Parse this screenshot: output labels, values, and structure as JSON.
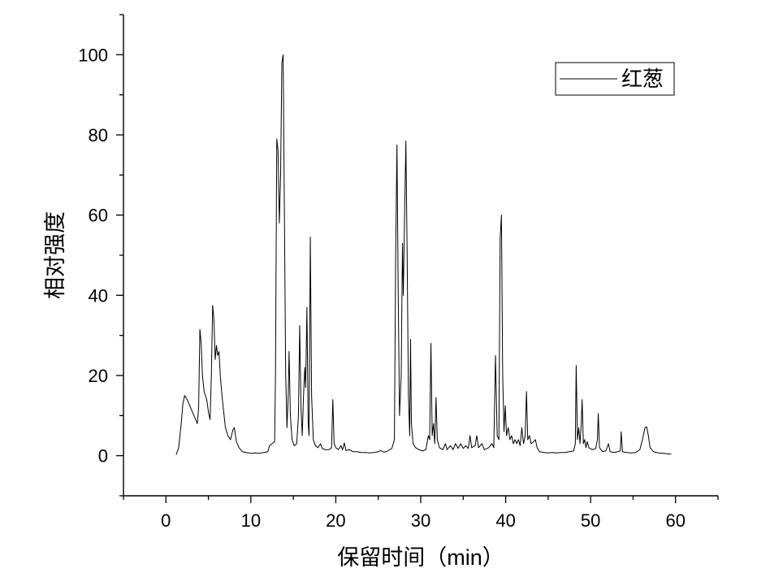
{
  "chart_data": {
    "type": "line",
    "xlabel": "保留时间（min）",
    "ylabel": "相对强度",
    "xlim": [
      -5,
      65
    ],
    "ylim": [
      -10,
      110
    ],
    "xticks": [
      0,
      10,
      20,
      30,
      40,
      50,
      60
    ],
    "yticks": [
      0,
      20,
      40,
      60,
      80,
      100
    ],
    "grid": false,
    "legend": "top-right",
    "series": [
      {
        "name": "红葱",
        "color": "#000000",
        "points": [
          [
            1.2,
            0.2
          ],
          [
            1.5,
            2
          ],
          [
            1.8,
            8
          ],
          [
            2.0,
            13
          ],
          [
            2.2,
            15
          ],
          [
            2.5,
            14
          ],
          [
            2.8,
            12.5
          ],
          [
            3.1,
            11
          ],
          [
            3.4,
            9.5
          ],
          [
            3.7,
            8
          ],
          [
            3.85,
            12
          ],
          [
            4.0,
            31.5
          ],
          [
            4.15,
            28
          ],
          [
            4.3,
            20
          ],
          [
            4.5,
            16
          ],
          [
            4.8,
            14
          ],
          [
            5.0,
            11
          ],
          [
            5.2,
            9
          ],
          [
            5.35,
            20
          ],
          [
            5.5,
            37.5
          ],
          [
            5.65,
            34
          ],
          [
            5.8,
            24
          ],
          [
            5.95,
            27.5
          ],
          [
            6.1,
            25
          ],
          [
            6.25,
            26
          ],
          [
            6.4,
            20
          ],
          [
            6.6,
            15
          ],
          [
            6.8,
            11
          ],
          [
            7.0,
            7
          ],
          [
            7.3,
            5
          ],
          [
            7.6,
            4
          ],
          [
            7.9,
            6.5
          ],
          [
            8.05,
            7
          ],
          [
            8.3,
            3.5
          ],
          [
            8.6,
            2
          ],
          [
            9.0,
            1
          ],
          [
            9.5,
            0.8
          ],
          [
            10,
            0.6
          ],
          [
            10.5,
            0.7
          ],
          [
            11,
            0.6
          ],
          [
            11.5,
            0.8
          ],
          [
            12.0,
            1
          ],
          [
            12.2,
            2.5
          ],
          [
            12.5,
            3
          ],
          [
            12.8,
            3.5
          ],
          [
            12.9,
            20
          ],
          [
            13.05,
            79
          ],
          [
            13.2,
            76
          ],
          [
            13.35,
            58
          ],
          [
            13.5,
            70
          ],
          [
            13.65,
            98
          ],
          [
            13.8,
            100
          ],
          [
            13.95,
            60
          ],
          [
            14.1,
            20
          ],
          [
            14.25,
            7
          ],
          [
            14.4,
            15
          ],
          [
            14.5,
            26
          ],
          [
            14.65,
            10
          ],
          [
            14.85,
            4
          ],
          [
            15.1,
            2.5
          ],
          [
            15.4,
            3
          ],
          [
            15.6,
            10
          ],
          [
            15.75,
            32.5
          ],
          [
            15.9,
            12
          ],
          [
            16.05,
            5
          ],
          [
            16.2,
            15
          ],
          [
            16.35,
            22
          ],
          [
            16.45,
            17
          ],
          [
            16.6,
            37
          ],
          [
            16.75,
            8
          ],
          [
            16.85,
            5
          ],
          [
            17.0,
            54.5
          ],
          [
            17.15,
            15
          ],
          [
            17.35,
            4
          ],
          [
            17.6,
            2.5
          ],
          [
            17.9,
            2
          ],
          [
            18.2,
            3
          ],
          [
            18.4,
            1.8
          ],
          [
            18.8,
            1.5
          ],
          [
            19.2,
            1.5
          ],
          [
            19.5,
            2
          ],
          [
            19.65,
            14
          ],
          [
            19.8,
            3
          ],
          [
            20.0,
            2
          ],
          [
            20.3,
            1.5
          ],
          [
            20.6,
            2.5
          ],
          [
            20.8,
            1.5
          ],
          [
            21.0,
            3.2
          ],
          [
            21.2,
            1.3
          ],
          [
            21.6,
            1.5
          ],
          [
            22,
            1
          ],
          [
            22.5,
            1
          ],
          [
            23,
            0.8
          ],
          [
            23.5,
            0.8
          ],
          [
            24,
            0.7
          ],
          [
            24.5,
            0.8
          ],
          [
            25,
            1
          ],
          [
            25.3,
            1.3
          ],
          [
            25.6,
            0.9
          ],
          [
            26,
            1
          ],
          [
            26.3,
            1.5
          ],
          [
            26.6,
            1.8
          ],
          [
            26.9,
            4
          ],
          [
            27.05,
            50
          ],
          [
            27.2,
            77.5
          ],
          [
            27.35,
            40
          ],
          [
            27.5,
            10
          ],
          [
            27.7,
            20
          ],
          [
            27.85,
            53
          ],
          [
            27.95,
            40
          ],
          [
            28.1,
            60
          ],
          [
            28.25,
            78.5
          ],
          [
            28.4,
            50
          ],
          [
            28.55,
            15
          ],
          [
            28.7,
            5
          ],
          [
            28.8,
            29
          ],
          [
            28.9,
            8
          ],
          [
            29.1,
            3
          ],
          [
            29.4,
            2
          ],
          [
            29.8,
            1.5
          ],
          [
            30.2,
            1.2
          ],
          [
            30.6,
            1.5
          ],
          [
            30.9,
            5
          ],
          [
            31.05,
            4
          ],
          [
            31.2,
            28
          ],
          [
            31.35,
            5
          ],
          [
            31.5,
            8
          ],
          [
            31.65,
            3
          ],
          [
            31.8,
            14.5
          ],
          [
            31.95,
            4
          ],
          [
            32.2,
            2
          ],
          [
            32.6,
            1.5
          ],
          [
            32.9,
            3
          ],
          [
            33.1,
            1.5
          ],
          [
            33.5,
            2.5
          ],
          [
            33.8,
            1.5
          ],
          [
            34.1,
            3
          ],
          [
            34.4,
            1.8
          ],
          [
            34.7,
            3
          ],
          [
            35,
            1.8
          ],
          [
            35.3,
            2.5
          ],
          [
            35.6,
            1.8
          ],
          [
            35.8,
            5
          ],
          [
            36.0,
            2
          ],
          [
            36.4,
            2.5
          ],
          [
            36.6,
            5
          ],
          [
            36.8,
            2
          ],
          [
            37.2,
            3
          ],
          [
            37.5,
            1.5
          ],
          [
            38,
            2
          ],
          [
            38.4,
            3
          ],
          [
            38.6,
            2
          ],
          [
            38.8,
            25
          ],
          [
            39.0,
            5
          ],
          [
            39.2,
            4
          ],
          [
            39.35,
            54
          ],
          [
            39.5,
            60
          ],
          [
            39.65,
            20
          ],
          [
            39.8,
            6
          ],
          [
            39.95,
            12.5
          ],
          [
            40.1,
            5
          ],
          [
            40.3,
            7
          ],
          [
            40.5,
            4
          ],
          [
            40.7,
            5
          ],
          [
            40.9,
            3
          ],
          [
            41.1,
            4
          ],
          [
            41.3,
            3
          ],
          [
            41.5,
            4
          ],
          [
            41.7,
            2.5
          ],
          [
            41.9,
            7
          ],
          [
            42.1,
            3
          ],
          [
            42.3,
            5
          ],
          [
            42.45,
            16
          ],
          [
            42.6,
            4
          ],
          [
            42.8,
            5
          ],
          [
            43.0,
            3
          ],
          [
            43.3,
            3.5
          ],
          [
            43.5,
            4
          ],
          [
            43.7,
            2
          ],
          [
            44,
            1
          ],
          [
            44.5,
            0.8
          ],
          [
            45,
            0.7
          ],
          [
            45.5,
            0.8
          ],
          [
            46,
            0.7
          ],
          [
            46.5,
            0.8
          ],
          [
            47,
            0.8
          ],
          [
            47.5,
            1
          ],
          [
            48,
            1.2
          ],
          [
            48.2,
            3
          ],
          [
            48.3,
            22.5
          ],
          [
            48.45,
            4
          ],
          [
            48.6,
            7
          ],
          [
            48.75,
            3
          ],
          [
            48.9,
            8
          ],
          [
            49.0,
            14
          ],
          [
            49.15,
            3
          ],
          [
            49.3,
            4
          ],
          [
            49.45,
            2
          ],
          [
            49.6,
            3.5
          ],
          [
            49.8,
            2
          ],
          [
            50.2,
            1.5
          ],
          [
            50.6,
            1.8
          ],
          [
            50.8,
            4
          ],
          [
            50.9,
            10.5
          ],
          [
            51.05,
            2
          ],
          [
            51.4,
            1
          ],
          [
            51.8,
            1.2
          ],
          [
            52.1,
            3
          ],
          [
            52.3,
            1
          ],
          [
            52.8,
            0.8
          ],
          [
            53.2,
            1
          ],
          [
            53.5,
            1.2
          ],
          [
            53.6,
            6
          ],
          [
            53.75,
            1
          ],
          [
            54.2,
            0.8
          ],
          [
            54.8,
            0.7
          ],
          [
            55.3,
            0.8
          ],
          [
            55.8,
            1.5
          ],
          [
            56.1,
            4
          ],
          [
            56.4,
            7
          ],
          [
            56.6,
            7.2
          ],
          [
            56.8,
            5
          ],
          [
            57.0,
            2
          ],
          [
            57.4,
            1
          ],
          [
            58,
            0.7
          ],
          [
            58.5,
            0.6
          ],
          [
            59,
            0.5
          ],
          [
            59.5,
            0.4
          ]
        ]
      }
    ]
  }
}
